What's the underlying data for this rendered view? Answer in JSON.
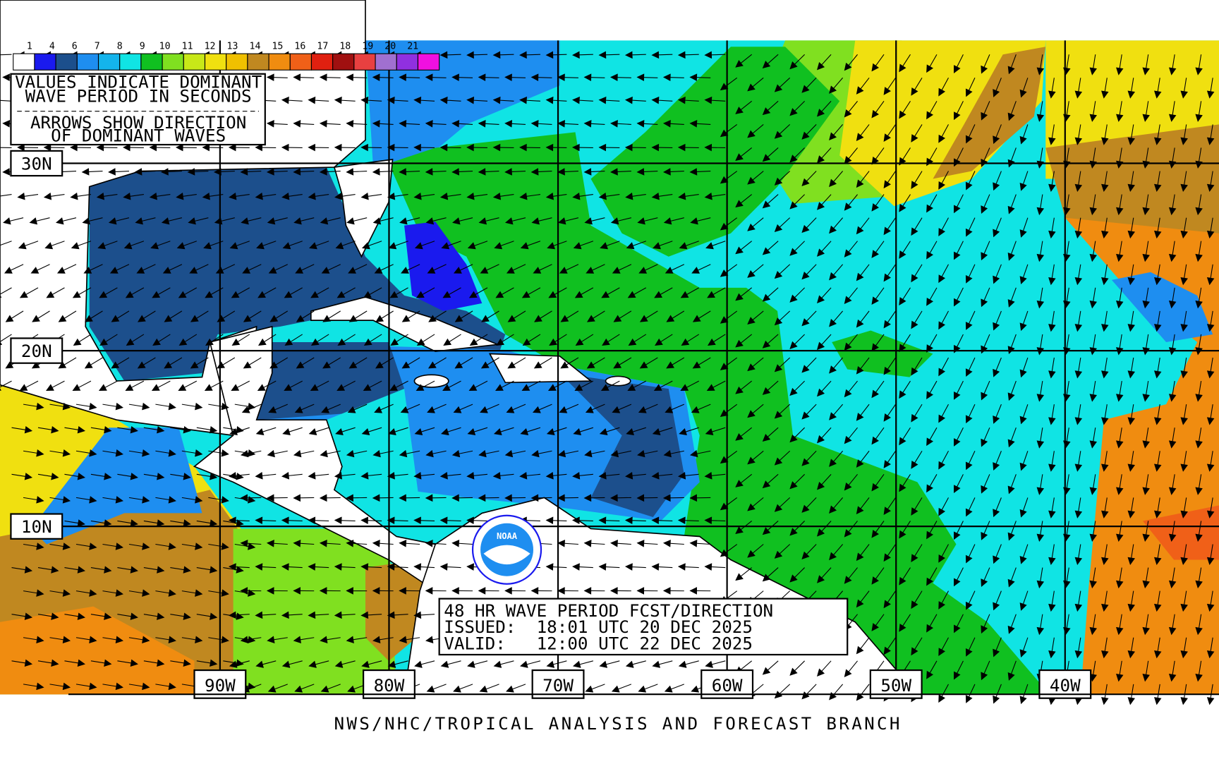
{
  "legend": {
    "labels": [
      "1",
      "4",
      "6",
      "7",
      "8",
      "9",
      "10",
      "11",
      "12",
      "13",
      "14",
      "15",
      "16",
      "17",
      "18",
      "19",
      "20",
      "21"
    ],
    "colors": [
      "#ffffff",
      "#1a1aee",
      "#1c4f8c",
      "#1e8ef0",
      "#14b4ec",
      "#10e4e4",
      "#10c020",
      "#80e020",
      "#c8e818",
      "#f0e010",
      "#f0c000",
      "#c08820",
      "#f08c10",
      "#f06018",
      "#e02010",
      "#a01010",
      "#e84040",
      "#a070d0",
      "#9030e0",
      "#f010e0"
    ]
  },
  "note": {
    "lines": [
      "VALUES INDICATE DOMINANT",
      "WAVE PERIOD IN SECONDS",
      "ARROWS SHOW DIRECTION",
      "OF DOMINANT WAVES"
    ]
  },
  "latitudes": [
    "30N",
    "20N",
    "10N"
  ],
  "longitudes": [
    "90W",
    "80W",
    "70W",
    "60W",
    "50W",
    "40W"
  ],
  "info": {
    "lines": [
      "48 HR WAVE PERIOD FCST/DIRECTION",
      "ISSUED:  18:01 UTC 20 DEC 2025",
      "VALID:   12:00 UTC 22 DEC 2025"
    ]
  },
  "logo": {
    "text": "NOAA"
  },
  "footer": "NWS/NHC/TROPICAL ANALYSIS AND FORECAST BRANCH"
}
